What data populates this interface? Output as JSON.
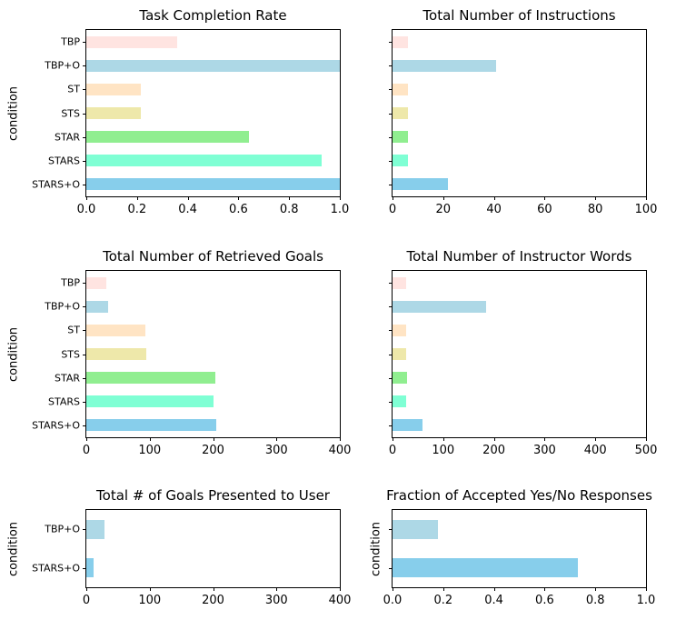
{
  "figure": {
    "background": "#ffffff",
    "axis_color": "#000000"
  },
  "palette": {
    "TBP": "#FFE4E1",
    "TBP+O": "#ADD8E6",
    "ST": "#FFE4C4",
    "STS": "#EEE8AA",
    "STAR": "#90EE90",
    "STARS": "#7FFFD4",
    "STARS+O": "#87CEEB"
  },
  "chart_data": [
    {
      "type": "bar",
      "orientation": "horizontal",
      "title": "Task Completion Rate",
      "ylabel": "condition",
      "categories": [
        "TBP",
        "TBP+O",
        "ST",
        "STS",
        "STAR",
        "STARS",
        "STARS+O"
      ],
      "values": [
        0.357,
        1.0,
        0.214,
        0.214,
        0.643,
        0.929,
        1.0
      ],
      "colors": [
        "#FFE4E1",
        "#ADD8E6",
        "#FFE4C4",
        "#EEE8AA",
        "#90EE90",
        "#7FFFD4",
        "#87CEEB"
      ],
      "xlim": [
        0,
        1.0
      ],
      "xticks": [
        0,
        0.2,
        0.4,
        0.6,
        0.8,
        1.0
      ],
      "xtick_labels": [
        "0.0",
        "0.2",
        "0.4",
        "0.6",
        "0.8",
        "1.0"
      ],
      "show_ytick_labels": true,
      "grid": false
    },
    {
      "type": "bar",
      "orientation": "horizontal",
      "title": "Total Number of Instructions",
      "categories": [
        "TBP",
        "TBP+O",
        "ST",
        "STS",
        "STAR",
        "STARS",
        "STARS+O"
      ],
      "values": [
        6,
        41,
        6,
        6,
        6,
        6,
        22
      ],
      "colors": [
        "#FFE4E1",
        "#ADD8E6",
        "#FFE4C4",
        "#EEE8AA",
        "#90EE90",
        "#7FFFD4",
        "#87CEEB"
      ],
      "xlim": [
        0,
        100
      ],
      "xticks": [
        0,
        20,
        40,
        60,
        80,
        100
      ],
      "xtick_labels": [
        "0",
        "20",
        "40",
        "60",
        "80",
        "100"
      ],
      "show_ytick_labels": false,
      "grid": false
    },
    {
      "type": "bar",
      "orientation": "horizontal",
      "title": "Total Number of Retrieved Goals",
      "ylabel": "condition",
      "categories": [
        "TBP",
        "TBP+O",
        "ST",
        "STS",
        "STAR",
        "STARS",
        "STARS+O"
      ],
      "values": [
        31,
        34,
        93,
        95,
        204,
        200,
        205
      ],
      "colors": [
        "#FFE4E1",
        "#ADD8E6",
        "#FFE4C4",
        "#EEE8AA",
        "#90EE90",
        "#7FFFD4",
        "#87CEEB"
      ],
      "xlim": [
        0,
        400
      ],
      "xticks": [
        0,
        100,
        200,
        300,
        400
      ],
      "xtick_labels": [
        "0",
        "100",
        "200",
        "300",
        "400"
      ],
      "show_ytick_labels": true,
      "grid": false
    },
    {
      "type": "bar",
      "orientation": "horizontal",
      "title": "Total Number of Instructor Words",
      "categories": [
        "TBP",
        "TBP+O",
        "ST",
        "STS",
        "STAR",
        "STARS",
        "STARS+O"
      ],
      "values": [
        27,
        184,
        27,
        27,
        28,
        27,
        59
      ],
      "colors": [
        "#FFE4E1",
        "#ADD8E6",
        "#FFE4C4",
        "#EEE8AA",
        "#90EE90",
        "#7FFFD4",
        "#87CEEB"
      ],
      "xlim": [
        0,
        500
      ],
      "xticks": [
        0,
        100,
        200,
        300,
        400,
        500
      ],
      "xtick_labels": [
        "0",
        "100",
        "200",
        "300",
        "400",
        "500"
      ],
      "show_ytick_labels": false,
      "grid": false
    },
    {
      "type": "bar",
      "orientation": "horizontal",
      "title": "Total # of Goals Presented to User",
      "ylabel": "condition",
      "categories": [
        "TBP+O",
        "STARS+O"
      ],
      "values": [
        28,
        12
      ],
      "colors": [
        "#ADD8E6",
        "#87CEEB"
      ],
      "xlim": [
        0,
        400
      ],
      "xticks": [
        0,
        100,
        200,
        300,
        400
      ],
      "xtick_labels": [
        "0",
        "100",
        "200",
        "300",
        "400"
      ],
      "show_ytick_labels": true,
      "grid": false
    },
    {
      "type": "bar",
      "orientation": "horizontal",
      "title": "Fraction of Accepted Yes/No Responses",
      "ylabel": "condition",
      "categories": [
        "TBP+O",
        "STARS+O"
      ],
      "values": [
        0.18,
        0.73
      ],
      "colors": [
        "#ADD8E6",
        "#87CEEB"
      ],
      "xlim": [
        0,
        1.0
      ],
      "xticks": [
        0,
        0.2,
        0.4,
        0.6,
        0.8,
        1.0
      ],
      "xtick_labels": [
        "0.0",
        "0.2",
        "0.4",
        "0.6",
        "0.8",
        "1.0"
      ],
      "show_ytick_labels": false,
      "grid": false
    }
  ]
}
